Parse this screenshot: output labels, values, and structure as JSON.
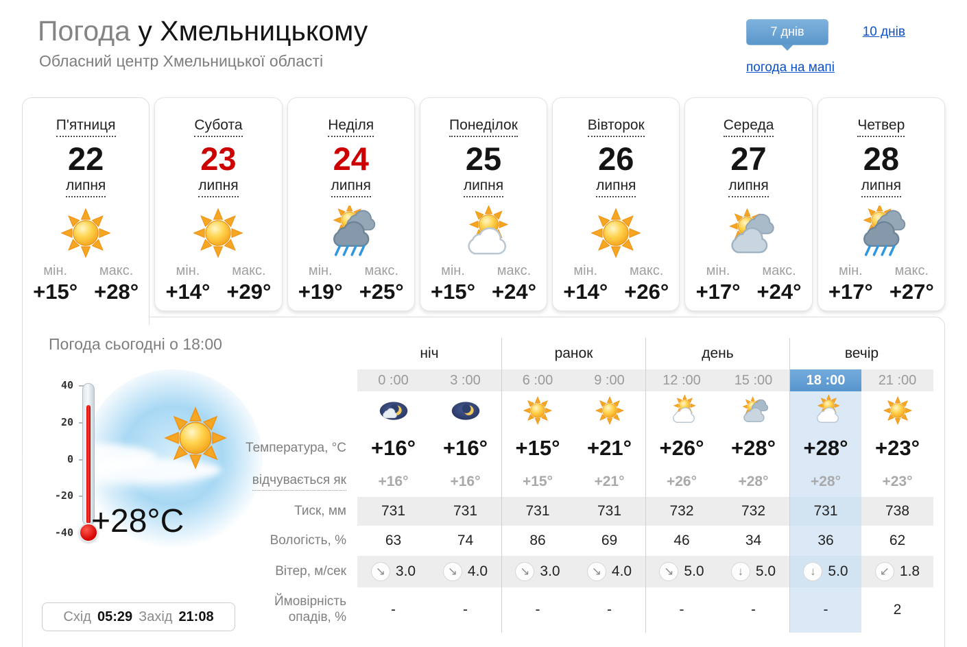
{
  "header": {
    "title_gray": "Погода",
    "title_black": "у Хмельницькому",
    "subtitle": "Обласний центр Хмельницької області"
  },
  "nav": {
    "tab_7days": "7 днів",
    "link_10days": "10 днів",
    "link_map": "погода на мапі"
  },
  "colors": {
    "accent_blue": "#5b97cb",
    "link_blue": "#0b50c5",
    "weekend_red": "#cc0001",
    "highlight_column": "#dbe9f6",
    "band_gray": "#ededed"
  },
  "labels": {
    "min": "мін.",
    "max": "макс."
  },
  "days": [
    {
      "name": "П'ятниця",
      "date": "22",
      "month": "липня",
      "weekend": false,
      "icon": "sun",
      "min": "+15°",
      "max": "+28°",
      "active": true
    },
    {
      "name": "Субота",
      "date": "23",
      "month": "липня",
      "weekend": true,
      "icon": "sun",
      "min": "+14°",
      "max": "+29°",
      "active": false
    },
    {
      "name": "Неділя",
      "date": "24",
      "month": "липня",
      "weekend": true,
      "icon": "sun-rain",
      "min": "+19°",
      "max": "+25°",
      "active": false
    },
    {
      "name": "Понеділок",
      "date": "25",
      "month": "липня",
      "weekend": false,
      "icon": "sun-cloud",
      "min": "+15°",
      "max": "+24°",
      "active": false
    },
    {
      "name": "Вівторок",
      "date": "26",
      "month": "липня",
      "weekend": false,
      "icon": "sun",
      "min": "+14°",
      "max": "+26°",
      "active": false
    },
    {
      "name": "Середа",
      "date": "27",
      "month": "липня",
      "weekend": false,
      "icon": "sun-clouds",
      "min": "+17°",
      "max": "+24°",
      "active": false
    },
    {
      "name": "Четвер",
      "date": "28",
      "month": "липня",
      "weekend": false,
      "icon": "sun-rain",
      "min": "+17°",
      "max": "+27°",
      "active": false
    }
  ],
  "today": {
    "heading": "Погода сьогодні о 18:00",
    "current_temp": "+28°C",
    "thermometer_scale": [
      "40",
      "20",
      "0",
      "-20",
      "-40"
    ],
    "sun_icon": "sun-icon",
    "sunrise_label": "Схід",
    "sunrise": "05:29",
    "sunset_label": "Захід",
    "sunset": "21:08"
  },
  "forecast_table": {
    "groups": [
      "ніч",
      "ранок",
      "день",
      "вечір"
    ],
    "times": [
      "0 :00",
      "3 :00",
      "6 :00",
      "9 :00",
      "12 :00",
      "15 :00",
      "18 :00",
      "21 :00"
    ],
    "icons": [
      "moon-cloud",
      "moon",
      "sun",
      "sun",
      "sun-cloud",
      "sun-clouds",
      "sun-cloud",
      "sun"
    ],
    "highlight_index": 6,
    "rows": [
      {
        "kind": "temp",
        "band": false,
        "label": "Температура, °С",
        "values": [
          "+16°",
          "+16°",
          "+15°",
          "+21°",
          "+26°",
          "+28°",
          "+28°",
          "+23°"
        ]
      },
      {
        "kind": "feels",
        "band": false,
        "label": "відчувається як",
        "label_dotted": true,
        "values": [
          "+16°",
          "+16°",
          "+15°",
          "+21°",
          "+26°",
          "+28°",
          "+28°",
          "+23°"
        ]
      },
      {
        "kind": "plain",
        "band": true,
        "label": "Тиск, мм",
        "values": [
          "731",
          "731",
          "731",
          "731",
          "732",
          "732",
          "731",
          "738"
        ]
      },
      {
        "kind": "plain",
        "band": false,
        "label": "Вологість, %",
        "values": [
          "63",
          "74",
          "86",
          "69",
          "46",
          "34",
          "36",
          "62"
        ]
      },
      {
        "kind": "wind",
        "band": true,
        "label": "Вітер, м/сек",
        "values": [
          "3.0",
          "4.0",
          "3.0",
          "4.0",
          "5.0",
          "5.0",
          "5.0",
          "1.8"
        ],
        "directions": [
          "↘",
          "↘",
          "↘",
          "↘",
          "↘",
          "↓",
          "↓",
          "↙"
        ]
      },
      {
        "kind": "plain",
        "band": false,
        "label": "Ймовірність опадів, %",
        "values": [
          "-",
          "-",
          "-",
          "-",
          "-",
          "-",
          "-",
          "2"
        ]
      }
    ]
  }
}
